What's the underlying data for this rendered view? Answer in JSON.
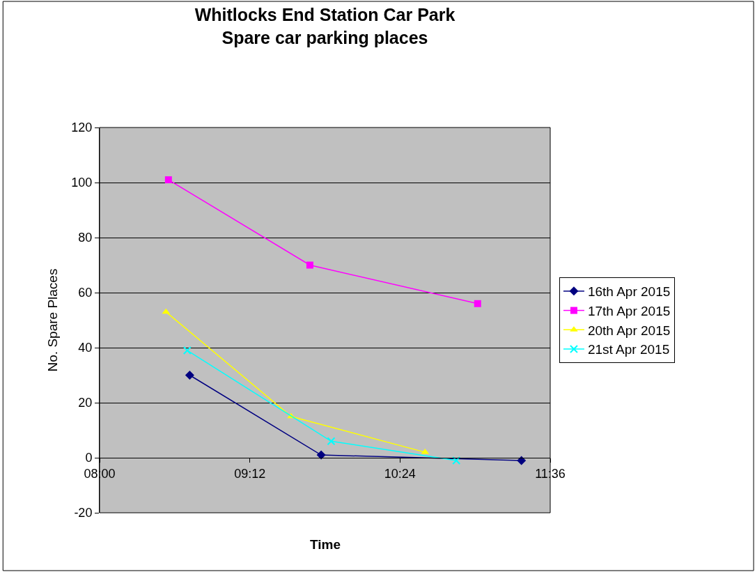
{
  "chart_data": {
    "type": "line",
    "title": "Whitlocks End Station Car Park\nSpare car parking places",
    "xlabel": "Time",
    "ylabel": "No. Spare Places",
    "series": [
      {
        "name": "16th Apr 2015",
        "color": "#000080",
        "marker": "diamond",
        "x": [
          8.72,
          9.77,
          11.37
        ],
        "values": [
          30,
          1,
          -1
        ]
      },
      {
        "name": "17th Apr 2015",
        "color": "#ff00ff",
        "marker": "square",
        "x": [
          8.55,
          9.68,
          11.02
        ],
        "values": [
          101,
          70,
          56
        ]
      },
      {
        "name": "20th Apr 2015",
        "color": "#ffff00",
        "marker": "triangle",
        "x": [
          8.53,
          9.53,
          10.6
        ],
        "values": [
          53,
          15,
          2
        ]
      },
      {
        "name": "21st Apr 2015",
        "color": "#00ffff",
        "marker": "cross",
        "x": [
          8.7,
          9.85,
          10.85
        ],
        "values": [
          39,
          6,
          -1
        ]
      }
    ],
    "xlim": [
      8,
      11.6
    ],
    "xticks": [
      {
        "value": 8,
        "label": "08:00"
      },
      {
        "value": 9.2,
        "label": "09:12"
      },
      {
        "value": 10.4,
        "label": "10:24"
      },
      {
        "value": 11.6,
        "label": "11:36"
      }
    ],
    "ylim": [
      -20,
      120
    ],
    "yticks": [
      -20,
      0,
      20,
      40,
      60,
      80,
      100,
      120
    ],
    "grid": "y",
    "legend": "right",
    "line_style": "solid"
  }
}
